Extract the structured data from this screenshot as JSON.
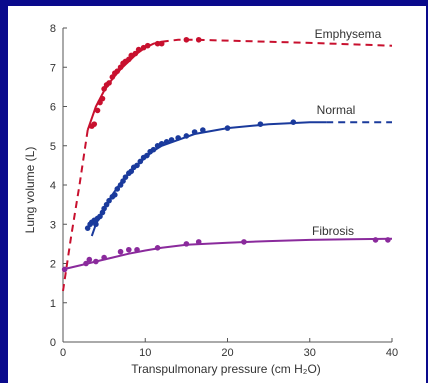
{
  "chart_data": {
    "type": "line",
    "title": "",
    "xlabel": "Transpulmonary pressure (cm H₂O)",
    "ylabel": "Lung volume (L)",
    "xlim": [
      0,
      40
    ],
    "ylim": [
      0,
      8
    ],
    "xticks": [
      "0",
      "10",
      "20",
      "30",
      "40"
    ],
    "yticks": [
      "0",
      "1",
      "2",
      "3",
      "4",
      "5",
      "6",
      "7",
      "8"
    ],
    "grid": false,
    "legend": "none",
    "series": [
      {
        "name": "Emphysema",
        "color": "#c8102e",
        "curve_solid": [
          [
            3,
            5.4
          ],
          [
            4,
            6.0
          ],
          [
            5,
            6.4
          ],
          [
            6,
            6.7
          ],
          [
            7,
            6.95
          ],
          [
            8,
            7.15
          ],
          [
            9,
            7.35
          ],
          [
            10,
            7.5
          ],
          [
            11,
            7.6
          ],
          [
            12,
            7.65
          ]
        ],
        "curve_dashed": [
          [
            0,
            1.3
          ],
          [
            1,
            2.7
          ],
          [
            2,
            4.0
          ],
          [
            3,
            5.4
          ]
        ],
        "curve_dashed_tail": [
          [
            12,
            7.65
          ],
          [
            14,
            7.7
          ],
          [
            16,
            7.7
          ],
          [
            20,
            7.68
          ],
          [
            30,
            7.62
          ],
          [
            40,
            7.55
          ]
        ],
        "points": [
          [
            3.5,
            5.5
          ],
          [
            3.8,
            5.55
          ],
          [
            4.2,
            5.9
          ],
          [
            4.5,
            6.1
          ],
          [
            4.8,
            6.2
          ],
          [
            5.0,
            6.45
          ],
          [
            5.3,
            6.55
          ],
          [
            5.6,
            6.6
          ],
          [
            6.0,
            6.75
          ],
          [
            6.3,
            6.85
          ],
          [
            6.6,
            6.9
          ],
          [
            7.0,
            7.0
          ],
          [
            7.3,
            7.1
          ],
          [
            7.6,
            7.15
          ],
          [
            8.0,
            7.2
          ],
          [
            8.3,
            7.3
          ],
          [
            8.8,
            7.35
          ],
          [
            9.2,
            7.45
          ],
          [
            9.8,
            7.5
          ],
          [
            10.3,
            7.55
          ],
          [
            11.5,
            7.6
          ],
          [
            12.0,
            7.6
          ],
          [
            15.0,
            7.7
          ],
          [
            16.5,
            7.7
          ]
        ]
      },
      {
        "name": "Normal",
        "color": "#1a3a9c",
        "curve_solid": [
          [
            3.5,
            2.7
          ],
          [
            4,
            3.0
          ],
          [
            5,
            3.4
          ],
          [
            6,
            3.75
          ],
          [
            7,
            4.05
          ],
          [
            8,
            4.3
          ],
          [
            9,
            4.5
          ],
          [
            10,
            4.7
          ],
          [
            11,
            4.87
          ],
          [
            12,
            5.0
          ],
          [
            14,
            5.15
          ],
          [
            16,
            5.3
          ],
          [
            20,
            5.45
          ],
          [
            25,
            5.55
          ],
          [
            30,
            5.6
          ],
          [
            32,
            5.6
          ]
        ],
        "curve_dashed": [
          [
            32,
            5.6
          ],
          [
            36,
            5.6
          ],
          [
            40,
            5.6
          ]
        ],
        "points": [
          [
            3.0,
            2.9
          ],
          [
            3.3,
            3.0
          ],
          [
            3.5,
            3.05
          ],
          [
            3.8,
            3.1
          ],
          [
            4.0,
            3.0
          ],
          [
            4.2,
            3.15
          ],
          [
            4.5,
            3.2
          ],
          [
            4.8,
            3.3
          ],
          [
            5.0,
            3.4
          ],
          [
            5.3,
            3.5
          ],
          [
            5.6,
            3.6
          ],
          [
            6.0,
            3.7
          ],
          [
            6.3,
            3.75
          ],
          [
            6.6,
            3.9
          ],
          [
            7.0,
            4.0
          ],
          [
            7.3,
            4.1
          ],
          [
            7.6,
            4.2
          ],
          [
            8.0,
            4.3
          ],
          [
            8.3,
            4.35
          ],
          [
            8.6,
            4.45
          ],
          [
            9.0,
            4.5
          ],
          [
            9.4,
            4.6
          ],
          [
            9.8,
            4.7
          ],
          [
            10.2,
            4.75
          ],
          [
            10.6,
            4.85
          ],
          [
            11.0,
            4.9
          ],
          [
            11.5,
            5.0
          ],
          [
            12.0,
            5.05
          ],
          [
            12.6,
            5.1
          ],
          [
            13.2,
            5.15
          ],
          [
            14.0,
            5.2
          ],
          [
            15.0,
            5.25
          ],
          [
            16.0,
            5.35
          ],
          [
            17.0,
            5.4
          ],
          [
            20.0,
            5.45
          ],
          [
            24.0,
            5.55
          ],
          [
            28.0,
            5.6
          ]
        ]
      },
      {
        "name": "Fibrosis",
        "color": "#8a2a9c",
        "curve_solid": [
          [
            0,
            1.85
          ],
          [
            2,
            1.95
          ],
          [
            4,
            2.05
          ],
          [
            6,
            2.15
          ],
          [
            8,
            2.25
          ],
          [
            10,
            2.33
          ],
          [
            12,
            2.4
          ],
          [
            15,
            2.48
          ],
          [
            20,
            2.53
          ],
          [
            25,
            2.57
          ],
          [
            30,
            2.6
          ],
          [
            35,
            2.62
          ],
          [
            40,
            2.63
          ]
        ],
        "curve_dashed": [],
        "points": [
          [
            0.2,
            1.85
          ],
          [
            2.8,
            2.0
          ],
          [
            3.2,
            2.1
          ],
          [
            4.0,
            2.05
          ],
          [
            5.0,
            2.15
          ],
          [
            7.0,
            2.3
          ],
          [
            8.0,
            2.35
          ],
          [
            9.0,
            2.35
          ],
          [
            11.5,
            2.4
          ],
          [
            15.0,
            2.5
          ],
          [
            16.5,
            2.55
          ],
          [
            22.0,
            2.55
          ],
          [
            38.0,
            2.6
          ],
          [
            39.5,
            2.6
          ]
        ]
      }
    ]
  }
}
